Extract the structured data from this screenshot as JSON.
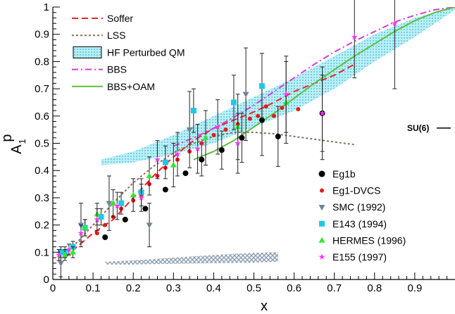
{
  "chart_data": {
    "type": "scatter",
    "title": "",
    "xlabel": "x",
    "ylabel": "A",
    "ylabel_sub": "1",
    "ylabel_sup": "p",
    "xlim": [
      0,
      1
    ],
    "ylim": [
      0,
      1
    ],
    "x_ticks": [
      0,
      0.1,
      0.2,
      0.3,
      0.4,
      0.5,
      0.6,
      0.7,
      0.8,
      0.9
    ],
    "x_tick_labels": [
      "0",
      "0.1",
      "0.2",
      "0.3",
      "0.4",
      "0.5",
      "0.6",
      "0.7",
      "0.8",
      "0.9"
    ],
    "y_ticks": [
      0,
      0.1,
      0.2,
      0.3,
      0.4,
      0.5,
      0.6,
      0.7,
      0.8,
      0.9,
      1
    ],
    "y_tick_labels": [
      "0",
      "0.1",
      "0.2",
      "0.3",
      "0.4",
      "0.5",
      "0.6",
      "0.7",
      "0.8",
      "0.9",
      "1"
    ],
    "annotations": [
      {
        "text": "SU(6)",
        "x": 0.99,
        "y": 0.556
      }
    ],
    "curves_legend_position": "top-left",
    "data_legend_position": "bottom-right",
    "curves": [
      {
        "name": "Soffer",
        "color": "#e8262b",
        "style": "dashed",
        "x": [
          0.03,
          0.06,
          0.1,
          0.15,
          0.2,
          0.25,
          0.3,
          0.35,
          0.4,
          0.45,
          0.5,
          0.55,
          0.6,
          0.65,
          0.7,
          0.75
        ],
        "y": [
          0.08,
          0.12,
          0.17,
          0.22,
          0.3,
          0.38,
          0.45,
          0.51,
          0.555,
          0.585,
          0.615,
          0.65,
          0.69,
          0.72,
          0.75,
          0.79
        ]
      },
      {
        "name": "LSS",
        "color": "#8b6f5a",
        "style": "dotted",
        "x": [
          0.05,
          0.1,
          0.15,
          0.2,
          0.25,
          0.3,
          0.35,
          0.4,
          0.45,
          0.5,
          0.55,
          0.6,
          0.65,
          0.7,
          0.75
        ],
        "y": [
          0.12,
          0.2,
          0.28,
          0.355,
          0.415,
          0.465,
          0.5,
          0.525,
          0.54,
          0.54,
          0.535,
          0.525,
          0.515,
          0.505,
          0.495
        ]
      },
      {
        "name": "BBS",
        "color": "#d63cd6",
        "style": "dashdot",
        "x": [
          0.3,
          0.35,
          0.4,
          0.45,
          0.5,
          0.55,
          0.6,
          0.65,
          0.7,
          0.75,
          0.8,
          0.85,
          0.9,
          0.95,
          1.0
        ],
        "y": [
          0.49,
          0.52,
          0.555,
          0.595,
          0.64,
          0.69,
          0.74,
          0.79,
          0.835,
          0.875,
          0.91,
          0.945,
          0.97,
          0.99,
          1.0
        ]
      },
      {
        "name": "BBS+OAM",
        "color": "#5cbf3f",
        "style": "solid",
        "x": [
          0.35,
          0.4,
          0.45,
          0.5,
          0.55,
          0.6,
          0.65,
          0.7,
          0.75,
          0.8,
          0.85,
          0.9,
          0.95,
          1.0
        ],
        "y": [
          0.44,
          0.47,
          0.51,
          0.56,
          0.61,
          0.665,
          0.72,
          0.77,
          0.82,
          0.865,
          0.91,
          0.95,
          0.98,
          1.0
        ]
      }
    ],
    "bands": [
      {
        "name": "HF Perturbed QM",
        "color": "#7fd8ea",
        "x": [
          0.12,
          0.2,
          0.3,
          0.4,
          0.5,
          0.6,
          0.7,
          0.8,
          0.9,
          1.0
        ],
        "lo": [
          0.42,
          0.43,
          0.46,
          0.5,
          0.56,
          0.62,
          0.7,
          0.8,
          0.89,
          0.99
        ],
        "hi": [
          0.44,
          0.47,
          0.53,
          0.6,
          0.67,
          0.74,
          0.82,
          0.9,
          0.96,
          1.0
        ]
      },
      {
        "name": "",
        "color": "#8a9bb0",
        "hatched": true,
        "x": [
          0.13,
          0.2,
          0.3,
          0.4,
          0.5,
          0.56
        ],
        "lo": [
          0.055,
          0.055,
          0.058,
          0.06,
          0.062,
          0.065
        ],
        "hi": [
          0.065,
          0.07,
          0.08,
          0.09,
          0.098,
          0.1
        ]
      }
    ],
    "series": [
      {
        "name": "Eg1b",
        "color": "#000000",
        "marker": "circle",
        "points": [
          {
            "x": 0.13,
            "y": 0.155,
            "e": 0
          },
          {
            "x": 0.18,
            "y": 0.22,
            "e": 0
          },
          {
            "x": 0.23,
            "y": 0.26,
            "e": 0
          },
          {
            "x": 0.28,
            "y": 0.33,
            "e": 0
          },
          {
            "x": 0.33,
            "y": 0.39,
            "e": 0
          },
          {
            "x": 0.37,
            "y": 0.44,
            "e": 0.06
          },
          {
            "x": 0.42,
            "y": 0.475,
            "e": 0.07
          },
          {
            "x": 0.47,
            "y": 0.52,
            "e": 0.09
          },
          {
            "x": 0.52,
            "y": 0.585,
            "e": 0.13
          },
          {
            "x": 0.56,
            "y": 0.525,
            "e": 0.11
          },
          {
            "x": 0.67,
            "y": 0.61,
            "e": 0.14
          }
        ]
      },
      {
        "name": "Eg1-DVCS",
        "color": "#e01c1c",
        "marker": "circle-small",
        "points": [
          {
            "x": 0.11,
            "y": 0.17,
            "e": 0
          },
          {
            "x": 0.13,
            "y": 0.2,
            "e": 0
          },
          {
            "x": 0.15,
            "y": 0.23,
            "e": 0
          },
          {
            "x": 0.17,
            "y": 0.26,
            "e": 0
          },
          {
            "x": 0.2,
            "y": 0.29,
            "e": 0
          },
          {
            "x": 0.22,
            "y": 0.31,
            "e": 0
          },
          {
            "x": 0.24,
            "y": 0.35,
            "e": 0
          },
          {
            "x": 0.26,
            "y": 0.38,
            "e": 0
          },
          {
            "x": 0.28,
            "y": 0.41,
            "e": 0
          },
          {
            "x": 0.31,
            "y": 0.44,
            "e": 0
          },
          {
            "x": 0.34,
            "y": 0.47,
            "e": 0
          },
          {
            "x": 0.37,
            "y": 0.5,
            "e": 0
          },
          {
            "x": 0.4,
            "y": 0.53,
            "e": 0
          },
          {
            "x": 0.43,
            "y": 0.55,
            "e": 0
          },
          {
            "x": 0.46,
            "y": 0.57,
            "e": 0
          },
          {
            "x": 0.49,
            "y": 0.59,
            "e": 0
          },
          {
            "x": 0.51,
            "y": 0.6,
            "e": 0
          },
          {
            "x": 0.53,
            "y": 0.635,
            "e": 0
          },
          {
            "x": 0.55,
            "y": 0.6,
            "e": 0
          },
          {
            "x": 0.57,
            "y": 0.63,
            "e": 0
          },
          {
            "x": 0.61,
            "y": 0.625,
            "e": 0
          }
        ]
      },
      {
        "name": "SMC (1992)",
        "color": "#6f8296",
        "marker": "triangle-down",
        "points": [
          {
            "x": 0.02,
            "y": 0.06,
            "e": 0.05
          },
          {
            "x": 0.07,
            "y": 0.2,
            "e": 0.08
          },
          {
            "x": 0.14,
            "y": 0.28,
            "e": 0.1
          },
          {
            "x": 0.24,
            "y": 0.2,
            "e": 0.08
          },
          {
            "x": 0.34,
            "y": 0.55,
            "e": 0.14
          },
          {
            "x": 0.48,
            "y": 0.68,
            "e": 0.17
          }
        ]
      },
      {
        "name": "E143 (1994)",
        "color": "#1ec8e8",
        "marker": "square",
        "points": [
          {
            "x": 0.02,
            "y": 0.1,
            "e": 0.02
          },
          {
            "x": 0.03,
            "y": 0.1,
            "e": 0.02
          },
          {
            "x": 0.05,
            "y": 0.12,
            "e": 0.02
          },
          {
            "x": 0.08,
            "y": 0.19,
            "e": 0.03
          },
          {
            "x": 0.12,
            "y": 0.23,
            "e": 0.03
          },
          {
            "x": 0.17,
            "y": 0.28,
            "e": 0.04
          },
          {
            "x": 0.22,
            "y": 0.32,
            "e": 0.05
          },
          {
            "x": 0.28,
            "y": 0.43,
            "e": 0.06
          },
          {
            "x": 0.35,
            "y": 0.62,
            "e": 0.08
          },
          {
            "x": 0.45,
            "y": 0.65,
            "e": 0.1
          },
          {
            "x": 0.52,
            "y": 0.71,
            "e": 0.12
          }
        ]
      },
      {
        "name": "HERMES (1996)",
        "color": "#30e830",
        "marker": "triangle-up",
        "points": [
          {
            "x": 0.03,
            "y": 0.09,
            "e": 0.02
          },
          {
            "x": 0.05,
            "y": 0.1,
            "e": 0.02
          },
          {
            "x": 0.08,
            "y": 0.19,
            "e": 0.03
          },
          {
            "x": 0.11,
            "y": 0.24,
            "e": 0.04
          },
          {
            "x": 0.15,
            "y": 0.28,
            "e": 0.05
          },
          {
            "x": 0.2,
            "y": 0.31,
            "e": 0.06
          },
          {
            "x": 0.24,
            "y": 0.38,
            "e": 0.07
          },
          {
            "x": 0.3,
            "y": 0.42,
            "e": 0.08
          },
          {
            "x": 0.38,
            "y": 0.52,
            "e": 0.1
          },
          {
            "x": 0.46,
            "y": 0.56,
            "e": 0.12
          },
          {
            "x": 0.58,
            "y": 0.65,
            "e": 0.15
          }
        ]
      },
      {
        "name": "E155 (1997)",
        "color": "#ff33ff",
        "marker": "star",
        "points": [
          {
            "x": 0.015,
            "y": 0.09,
            "e": 0.02
          },
          {
            "x": 0.04,
            "y": 0.11,
            "e": 0.02
          },
          {
            "x": 0.07,
            "y": 0.17,
            "e": 0.03
          },
          {
            "x": 0.11,
            "y": 0.22,
            "e": 0.04
          },
          {
            "x": 0.16,
            "y": 0.27,
            "e": 0.05
          },
          {
            "x": 0.22,
            "y": 0.3,
            "e": 0.05
          },
          {
            "x": 0.26,
            "y": 0.44,
            "e": 0.07
          },
          {
            "x": 0.31,
            "y": 0.46,
            "e": 0.08
          },
          {
            "x": 0.36,
            "y": 0.48,
            "e": 0.09
          },
          {
            "x": 0.41,
            "y": 0.56,
            "e": 0.1
          },
          {
            "x": 0.46,
            "y": 0.5,
            "e": 0.11
          },
          {
            "x": 0.58,
            "y": 0.68,
            "e": 0.14
          },
          {
            "x": 0.67,
            "y": 0.61,
            "e": 0.17
          },
          {
            "x": 0.75,
            "y": 0.89,
            "e": 0.15
          },
          {
            "x": 0.85,
            "y": 0.94,
            "e": 0.24
          }
        ]
      }
    ]
  }
}
